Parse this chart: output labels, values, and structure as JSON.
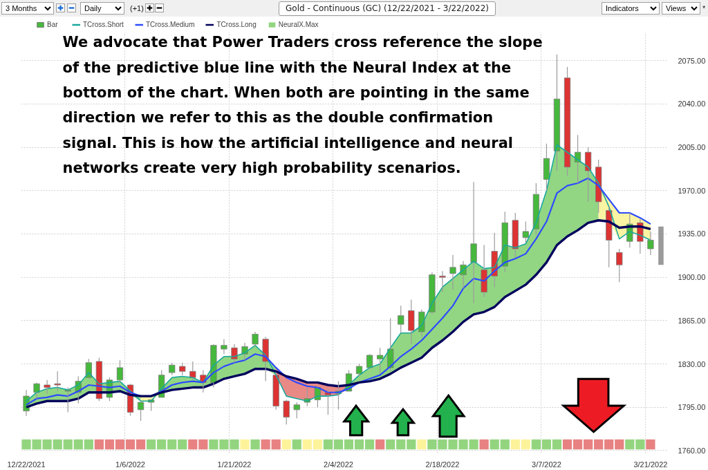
{
  "chart_data": {
    "type": "candlestick",
    "title": "Gold - Continuous (GC) (12/22/2021 - 3/22/2022)",
    "annotations": [
      "3 Months",
      "Daily",
      "(+1)",
      "Indicators",
      "Views",
      "*",
      "We advocate that Power Traders cross reference the slope of the predictive blue line with the Neural Index at the bottom of the chart.  When both are pointing in the same direction we refer to this as the double confirmation signal.  This is how the artificial intelligence and neural networks create very high probability scenarios."
    ],
    "categories": [
      "12/22/2021",
      null,
      null,
      null,
      null,
      null,
      null,
      null,
      null,
      null,
      "1/6/2022",
      null,
      null,
      null,
      null,
      null,
      null,
      null,
      null,
      null,
      "1/21/2022",
      null,
      null,
      null,
      null,
      null,
      null,
      null,
      null,
      null,
      "2/4/2022",
      null,
      null,
      null,
      null,
      null,
      null,
      null,
      null,
      null,
      "2/18/2022",
      null,
      null,
      null,
      null,
      null,
      null,
      null,
      null,
      null,
      "3/7/2022",
      null,
      null,
      null,
      null,
      null,
      null,
      null,
      null,
      null,
      "3/21/2022",
      null
    ],
    "ylim": [
      1758,
      2098
    ],
    "yticks": [
      {
        "value": 1760,
        "label": "1760.00"
      },
      {
        "value": 1795,
        "label": "1795.00"
      },
      {
        "value": 1830,
        "label": "1830.00"
      },
      {
        "value": 1865,
        "label": "1865.00"
      },
      {
        "value": 1900,
        "label": "1900.00"
      },
      {
        "value": 1935,
        "label": "1935.00"
      },
      {
        "value": 1970,
        "label": "1970.00"
      },
      {
        "value": 2005,
        "label": "2005.00"
      },
      {
        "value": 2040,
        "label": "2040.00"
      },
      {
        "value": 2075,
        "label": "2075.00"
      }
    ],
    "grid": true,
    "legend": "top left",
    "series": [
      {
        "name": "Bar",
        "ohlc": [
          [
            1792,
            1809,
            1788,
            1804
          ],
          [
            1807,
            1815,
            1802,
            1814
          ],
          [
            1813,
            1817,
            1806,
            1811
          ],
          [
            1814,
            1824,
            1808,
            1813
          ],
          [
            1808,
            1811,
            1791,
            1809
          ],
          [
            1807,
            1820,
            1798,
            1816
          ],
          [
            1819,
            1834,
            1818,
            1831
          ],
          [
            1832,
            1835,
            1800,
            1802
          ],
          [
            1803,
            1819,
            1800,
            1817
          ],
          [
            1817,
            1833,
            1815,
            1827
          ],
          [
            1813,
            1814,
            1788,
            1791
          ],
          [
            1793,
            1800,
            1784,
            1799
          ],
          [
            1799,
            1801,
            1792,
            1801
          ],
          [
            1803,
            1825,
            1803,
            1821
          ],
          [
            1823,
            1831,
            1821,
            1829
          ],
          [
            1828,
            1831,
            1821,
            1824
          ],
          [
            1824,
            1832,
            1817,
            1819
          ],
          [
            1821,
            1825,
            1807,
            1815
          ],
          [
            1815,
            1846,
            1811,
            1845
          ],
          [
            1842,
            1850,
            1838,
            1845
          ],
          [
            1843,
            1846,
            1831,
            1834
          ],
          [
            1838,
            1847,
            1833,
            1844
          ],
          [
            1846,
            1856,
            1844,
            1854
          ],
          [
            1850,
            1852,
            1816,
            1832
          ],
          [
            1821,
            1823,
            1793,
            1796
          ],
          [
            1800,
            1801,
            1781,
            1787
          ],
          [
            1793,
            1799,
            1786,
            1797
          ],
          [
            1799,
            1811,
            1796,
            1802
          ],
          [
            1801,
            1812,
            1795,
            1811
          ],
          [
            1807,
            1810,
            1789,
            1805
          ],
          [
            1806,
            1816,
            1793,
            1808
          ],
          [
            1808,
            1825,
            1808,
            1822
          ],
          [
            1822,
            1830,
            1820,
            1828
          ],
          [
            1827,
            1838,
            1826,
            1837
          ],
          [
            1834,
            1843,
            1822,
            1837
          ],
          [
            1827,
            1867,
            1824,
            1842
          ],
          [
            1862,
            1877,
            1855,
            1869
          ],
          [
            1873,
            1882,
            1846,
            1857
          ],
          [
            1856,
            1874,
            1852,
            1872
          ],
          [
            1872,
            1904,
            1870,
            1902
          ],
          [
            1901,
            1905,
            1888,
            1900
          ],
          [
            1903,
            1918,
            1890,
            1908
          ],
          [
            1902,
            1913,
            1891,
            1910
          ],
          [
            1912,
            1977,
            1879,
            1927
          ],
          [
            1906,
            1926,
            1884,
            1888
          ],
          [
            1921,
            1936,
            1892,
            1901
          ],
          [
            1909,
            1953,
            1904,
            1944
          ],
          [
            1946,
            1952,
            1916,
            1923
          ],
          [
            1932,
            1945,
            1928,
            1937
          ],
          [
            1939,
            1976,
            1934,
            1967
          ],
          [
            1979,
            2008,
            1970,
            1996
          ],
          [
            2002,
            2080,
            1986,
            2044
          ],
          [
            2061,
            2070,
            1982,
            1989
          ],
          [
            1993,
            2015,
            1976,
            2001
          ],
          [
            2001,
            2005,
            1961,
            1986
          ],
          [
            1989,
            1995,
            1952,
            1961
          ],
          [
            1954,
            1957,
            1908,
            1930
          ],
          [
            1920,
            1923,
            1896,
            1910
          ],
          [
            1929,
            1952,
            1924,
            1943
          ],
          [
            1944,
            1947,
            1919,
            1929
          ],
          [
            1923,
            1937,
            1918,
            1930
          ],
          null
        ],
        "colors": [
          "#46b83c",
          "#46b83c",
          "#dd3333",
          "#dd3333",
          "#46b83c",
          "#46b83c",
          "#46b83c",
          "#dd3333",
          "#46b83c",
          "#46b83c",
          "#dd3333",
          "#46b83c",
          "#46b83c",
          "#46b83c",
          "#46b83c",
          "#dd3333",
          "#dd3333",
          "#dd3333",
          "#46b83c",
          "#46b83c",
          "#dd3333",
          "#46b83c",
          "#46b83c",
          "#dd3333",
          "#dd3333",
          "#dd3333",
          "#46b83c",
          "#46b83c",
          "#46b83c",
          "#dd3333",
          "#46b83c",
          "#46b83c",
          "#46b83c",
          "#46b83c",
          "#46b83c",
          "#46b83c",
          "#46b83c",
          "#dd3333",
          "#46b83c",
          "#46b83c",
          "#dd3333",
          "#46b83c",
          "#46b83c",
          "#46b83c",
          "#dd3333",
          "#dd3333",
          "#46b83c",
          "#dd3333",
          "#46b83c",
          "#46b83c",
          "#46b83c",
          "#46b83c",
          "#dd3333",
          "#46b83c",
          "#dd3333",
          "#dd3333",
          "#dd3333",
          "#dd3333",
          "#46b83c",
          "#dd3333",
          "#46b83c",
          null
        ]
      },
      {
        "type": "line",
        "name": "TCross.Short",
        "color": "#1aa89e",
        "values": [
          1800,
          1807,
          1810,
          1811,
          1809,
          1813,
          1823,
          1814,
          1815,
          1816,
          1808,
          1800,
          1800,
          1810,
          1819,
          1820,
          1819,
          1815,
          1829,
          1836,
          1836,
          1839,
          1845,
          1837,
          1821,
          1804,
          1802,
          1800,
          1804,
          1804,
          1805,
          1813,
          1821,
          1827,
          1830,
          1843,
          1855,
          1855,
          1861,
          1879,
          1892,
          1899,
          1906,
          1913,
          1907,
          1908,
          1926,
          1924,
          1927,
          1944,
          1970,
          2007,
          2001,
          1995,
          1989,
          1976,
          1957,
          1931,
          1937,
          1934,
          1930,
          null
        ]
      },
      {
        "type": "line",
        "name": "TCross.Medium",
        "color": "#2d4bff",
        "values": [
          1797,
          1802,
          1803,
          1805,
          1804,
          1808,
          1813,
          1812,
          1811,
          1812,
          1807,
          1804,
          1804,
          1808,
          1813,
          1815,
          1816,
          1815,
          1823,
          1828,
          1831,
          1833,
          1838,
          1836,
          1827,
          1819,
          1815,
          1812,
          1811,
          1807,
          1807,
          1810,
          1815,
          1818,
          1821,
          1828,
          1836,
          1842,
          1849,
          1858,
          1867,
          1877,
          1891,
          1899,
          1897,
          1905,
          1912,
          1915,
          1919,
          1931,
          1945,
          1968,
          1974,
          1976,
          1980,
          1974,
          1963,
          1952,
          1952,
          1948,
          1943,
          null
        ]
      },
      {
        "type": "line",
        "name": "TCross.Long",
        "color": "#00005c",
        "values": [
          1795,
          1798,
          1800,
          1800,
          1800,
          1802,
          1807,
          1807,
          1807,
          1808,
          1805,
          1804,
          1804,
          1807,
          1809,
          1810,
          1811,
          1811,
          1814,
          1818,
          1820,
          1822,
          1826,
          1826,
          1824,
          1820,
          1818,
          1815,
          1815,
          1813,
          1812,
          1813,
          1815,
          1816,
          1818,
          1822,
          1827,
          1831,
          1835,
          1843,
          1849,
          1856,
          1864,
          1870,
          1872,
          1876,
          1884,
          1889,
          1894,
          1902,
          1912,
          1926,
          1933,
          1938,
          1944,
          1946,
          1945,
          1940,
          1941,
          1941,
          1939,
          null
        ]
      },
      {
        "type": "bar",
        "name": "NeuralX.Max",
        "values": [
          8,
          8,
          8,
          8,
          8,
          8,
          8,
          8,
          8,
          8,
          8,
          8,
          8,
          8,
          8,
          8,
          8,
          8,
          8,
          8,
          8,
          8,
          8,
          8,
          8,
          8,
          8,
          8,
          8,
          8,
          8,
          8,
          8,
          8,
          8,
          8,
          8,
          8,
          8,
          8,
          8,
          8,
          8,
          8,
          8,
          8,
          8,
          8,
          8,
          8,
          8,
          8,
          8,
          8,
          8,
          8,
          8,
          8,
          8,
          8,
          8,
          null
        ],
        "base": [
          1761,
          1761,
          1761,
          1761,
          1761,
          1761,
          1761,
          1761,
          1761,
          1761,
          1761,
          1761,
          1761,
          1761,
          1761,
          1761,
          1761,
          1761,
          1761,
          1761,
          1761,
          1761,
          1761,
          1761,
          1761,
          1761,
          1761,
          1761,
          1761,
          1761,
          1761,
          1761,
          1761,
          1761,
          1761,
          1761,
          1761,
          1761,
          1761,
          1761,
          1761,
          1761,
          1761,
          1761,
          1761,
          1761,
          1761,
          1761,
          1761,
          1761,
          1761,
          1761,
          1761,
          1761,
          1761,
          1761,
          1761,
          1761,
          1761,
          1761,
          1761,
          null
        ],
        "colors": [
          "#93d57f",
          "#93d57f",
          "#93d57f",
          "#93d57f",
          "#93d57f",
          "#93d57f",
          "#93d57f",
          "#e88282",
          "#e88282",
          "#e88282",
          "#e88282",
          "#e88282",
          "#93d57f",
          "#93d57f",
          "#93d57f",
          "#93d57f",
          "#e88282",
          "#e88282",
          "#93d57f",
          "#93d57f",
          "#93d57f",
          "#fdf39b",
          "#93d57f",
          "#e88282",
          "#e88282",
          "#fdf39b",
          "#93d57f",
          "#fdf39b",
          "#fdf39b",
          "#93d57f",
          "#93d57f",
          "#93d57f",
          "#93d57f",
          "#93d57f",
          "#e88282",
          "#93d57f",
          "#93d57f",
          "#93d57f",
          "#fdf39b",
          "#93d57f",
          "#93d57f",
          "#93d57f",
          "#93d57f",
          "#93d57f",
          "#e88282",
          "#93d57f",
          "#93d57f",
          "#fdf39b",
          "#fdf39b",
          "#93d57f",
          "#93d57f",
          "#93d57f",
          "#e88282",
          "#e88282",
          "#e88282",
          "#e88282",
          "#e88282",
          "#e88282",
          "#93d57f",
          "#93d57f",
          "#e88282",
          null
        ]
      },
      {
        "type": "line",
        "color": "#92d683",
        "values": [
          null,
          null,
          null,
          null,
          null,
          null,
          null,
          null,
          null,
          null,
          null,
          null,
          null,
          null,
          null,
          null,
          null,
          null,
          null,
          null,
          null,
          null,
          null,
          null,
          null,
          null,
          null,
          null,
          null,
          null,
          null,
          null,
          null,
          null,
          null,
          null,
          null,
          null,
          null,
          null,
          null,
          null,
          null,
          null,
          null,
          null,
          null,
          null,
          null,
          null,
          null,
          null,
          null,
          null,
          null,
          null,
          null,
          null,
          null,
          null,
          null,
          null
        ],
        "upper": [
          1800,
          1807,
          1810,
          1811,
          1809,
          1813,
          1823,
          1814,
          1815,
          1816,
          1808,
          1804,
          null,
          null,
          null,
          null,
          null,
          null,
          null,
          null,
          null,
          null,
          null,
          null,
          null,
          null,
          null,
          null,
          null,
          null,
          null,
          null,
          null,
          null,
          null,
          null,
          null,
          null,
          null,
          null,
          null,
          null,
          null,
          null,
          null,
          null,
          null,
          null,
          null,
          null,
          null,
          null,
          null,
          null,
          null,
          null,
          null,
          null,
          null,
          null,
          null,
          null
        ],
        "lower": [
          1795,
          1798,
          1800,
          1800,
          1800,
          1802,
          1807,
          1807,
          1807,
          1808,
          1805,
          1800,
          null,
          null,
          null,
          null,
          null,
          null,
          null,
          null,
          null,
          null,
          null,
          null,
          null,
          null,
          null,
          null,
          null,
          null,
          null,
          null,
          null,
          null,
          null,
          null,
          null,
          null,
          null,
          null,
          null,
          null,
          null,
          null,
          null,
          null,
          null,
          null,
          null,
          null,
          null,
          null,
          null,
          null,
          null,
          null,
          null,
          null,
          null,
          null,
          null,
          null
        ]
      },
      {
        "type": "line",
        "color": "#fbf5a3",
        "values": [
          null,
          null,
          null,
          null,
          null,
          null,
          null,
          null,
          null,
          null,
          null,
          null,
          null,
          null,
          null,
          null,
          null,
          null,
          null,
          null,
          null,
          null,
          null,
          null,
          null,
          null,
          null,
          null,
          null,
          null,
          null,
          null,
          null,
          null,
          null,
          null,
          null,
          null,
          null,
          null,
          null,
          null,
          null,
          null,
          null,
          null,
          null,
          null,
          null,
          null,
          null,
          null,
          null,
          null,
          null,
          null,
          null,
          null,
          null,
          null,
          null,
          null
        ],
        "upper": [
          null,
          null,
          null,
          null,
          null,
          null,
          null,
          null,
          null,
          null,
          null,
          1804,
          1804,
          1810,
          null,
          null,
          null,
          null,
          null,
          null,
          null,
          null,
          null,
          null,
          null,
          null,
          null,
          null,
          null,
          null,
          null,
          null,
          null,
          null,
          null,
          null,
          null,
          null,
          null,
          null,
          null,
          null,
          null,
          null,
          null,
          null,
          null,
          null,
          null,
          null,
          null,
          null,
          null,
          null,
          null,
          null,
          null,
          null,
          null,
          null,
          null,
          null
        ],
        "lower": [
          null,
          null,
          null,
          null,
          null,
          null,
          null,
          null,
          null,
          null,
          null,
          1800,
          1800,
          1807,
          null,
          null,
          null,
          null,
          null,
          null,
          null,
          null,
          null,
          null,
          null,
          null,
          null,
          null,
          null,
          null,
          null,
          null,
          null,
          null,
          null,
          null,
          null,
          null,
          null,
          null,
          null,
          null,
          null,
          null,
          null,
          null,
          null,
          null,
          null,
          null,
          null,
          null,
          null,
          null,
          null,
          null,
          null,
          null,
          null,
          null,
          null,
          null
        ]
      },
      {
        "type": "line",
        "color": "#92d683",
        "values": [
          null,
          null,
          null,
          null,
          null,
          null,
          null,
          null,
          null,
          null,
          null,
          null,
          null,
          null,
          null,
          null,
          null,
          null,
          null,
          null,
          null,
          null,
          null,
          null,
          null,
          null,
          null,
          null,
          null,
          null,
          null,
          null,
          null,
          null,
          null,
          null,
          null,
          null,
          null,
          null,
          null,
          null,
          null,
          null,
          null,
          null,
          null,
          null,
          null,
          null,
          null,
          null,
          null,
          null,
          null,
          null,
          null,
          null,
          null,
          null,
          null,
          null
        ],
        "upper": [
          null,
          null,
          null,
          null,
          null,
          null,
          null,
          null,
          null,
          null,
          null,
          null,
          null,
          1810,
          1819,
          1820,
          1819,
          1815,
          1829,
          1836,
          1836,
          1839,
          1845,
          1837,
          1827,
          null,
          null,
          null,
          null,
          null,
          null,
          null,
          null,
          null,
          null,
          null,
          null,
          null,
          null,
          null,
          null,
          null,
          null,
          null,
          null,
          null,
          null,
          null,
          null,
          null,
          null,
          null,
          null,
          null,
          null,
          null,
          null,
          null,
          null,
          null,
          null,
          null
        ],
        "lower": [
          null,
          null,
          null,
          null,
          null,
          null,
          null,
          null,
          null,
          null,
          null,
          null,
          null,
          1807,
          1809,
          1810,
          1811,
          1811,
          1814,
          1818,
          1820,
          1822,
          1826,
          1826,
          1821,
          null,
          null,
          null,
          null,
          null,
          null,
          null,
          null,
          null,
          null,
          null,
          null,
          null,
          null,
          null,
          null,
          null,
          null,
          null,
          null,
          null,
          null,
          null,
          null,
          null,
          null,
          null,
          null,
          null,
          null,
          null,
          null,
          null,
          null,
          null,
          null,
          null
        ]
      },
      {
        "type": "line",
        "color": "#e98986",
        "values": [
          null,
          null,
          null,
          null,
          null,
          null,
          null,
          null,
          null,
          null,
          null,
          null,
          null,
          null,
          null,
          null,
          null,
          null,
          null,
          null,
          null,
          null,
          null,
          null,
          null,
          null,
          null,
          null,
          null,
          null,
          null,
          null,
          null,
          null,
          null,
          null,
          null,
          null,
          null,
          null,
          null,
          null,
          null,
          null,
          null,
          null,
          null,
          null,
          null,
          null,
          null,
          null,
          null,
          null,
          null,
          null,
          null,
          null,
          null,
          null,
          null,
          null
        ],
        "upper": [
          null,
          null,
          null,
          null,
          null,
          null,
          null,
          null,
          null,
          null,
          null,
          null,
          null,
          null,
          null,
          null,
          null,
          null,
          null,
          null,
          null,
          null,
          null,
          null,
          1827,
          1820,
          1818,
          1815,
          1815,
          1813,
          1812,
          1813,
          null,
          null,
          null,
          null,
          null,
          null,
          null,
          null,
          null,
          null,
          null,
          null,
          null,
          null,
          null,
          null,
          null,
          null,
          null,
          null,
          null,
          null,
          null,
          null,
          null,
          null,
          null,
          null,
          null,
          null
        ],
        "lower": [
          null,
          null,
          null,
          null,
          null,
          null,
          null,
          null,
          null,
          null,
          null,
          null,
          null,
          null,
          null,
          null,
          null,
          null,
          null,
          null,
          null,
          null,
          null,
          null,
          1821,
          1804,
          1802,
          1800,
          1804,
          1804,
          1805,
          1810,
          null,
          null,
          null,
          null,
          null,
          null,
          null,
          null,
          null,
          null,
          null,
          null,
          null,
          null,
          null,
          null,
          null,
          null,
          null,
          null,
          null,
          null,
          null,
          null,
          null,
          null,
          null,
          null,
          null,
          null
        ]
      },
      {
        "type": "line",
        "color": "#92d683",
        "values": [
          null,
          null,
          null,
          null,
          null,
          null,
          null,
          null,
          null,
          null,
          null,
          null,
          null,
          null,
          null,
          null,
          null,
          null,
          null,
          null,
          null,
          null,
          null,
          null,
          null,
          null,
          null,
          null,
          null,
          null,
          null,
          null,
          null,
          null,
          null,
          null,
          null,
          null,
          null,
          null,
          null,
          null,
          null,
          null,
          null,
          null,
          null,
          null,
          null,
          null,
          null,
          null,
          null,
          null,
          null,
          null,
          null,
          null,
          null,
          null,
          null,
          null
        ],
        "upper": [
          null,
          null,
          null,
          null,
          null,
          null,
          null,
          null,
          null,
          null,
          null,
          null,
          null,
          null,
          null,
          null,
          null,
          null,
          null,
          null,
          null,
          null,
          null,
          null,
          null,
          null,
          null,
          null,
          null,
          null,
          null,
          1813,
          1821,
          1827,
          1830,
          1843,
          1855,
          1855,
          1861,
          1879,
          1892,
          1899,
          1906,
          1913,
          1907,
          1908,
          1926,
          1924,
          1927,
          1944,
          1970,
          2007,
          2001,
          1995,
          1989,
          1976,
          null,
          null,
          null,
          null,
          null,
          null
        ],
        "lower": [
          null,
          null,
          null,
          null,
          null,
          null,
          null,
          null,
          null,
          null,
          null,
          null,
          null,
          null,
          null,
          null,
          null,
          null,
          null,
          null,
          null,
          null,
          null,
          null,
          null,
          null,
          null,
          null,
          null,
          null,
          null,
          1810,
          1815,
          1816,
          1818,
          1822,
          1827,
          1831,
          1835,
          1843,
          1849,
          1856,
          1864,
          1870,
          1872,
          1876,
          1884,
          1889,
          1894,
          1902,
          1912,
          1926,
          1933,
          1938,
          1944,
          1946,
          null,
          null,
          null,
          null,
          null,
          null
        ]
      },
      {
        "type": "line",
        "color": "#fbf5a3",
        "values": [
          null,
          null,
          null,
          null,
          null,
          null,
          null,
          null,
          null,
          null,
          null,
          null,
          null,
          null,
          null,
          null,
          null,
          null,
          null,
          null,
          null,
          null,
          null,
          null,
          null,
          null,
          null,
          null,
          null,
          null,
          null,
          null,
          null,
          null,
          null,
          null,
          null,
          null,
          null,
          null,
          null,
          null,
          null,
          null,
          null,
          null,
          null,
          null,
          null,
          null,
          null,
          null,
          null,
          null,
          null,
          null,
          null,
          null,
          null,
          null,
          null,
          null
        ],
        "upper": [
          null,
          null,
          null,
          null,
          null,
          null,
          null,
          null,
          null,
          null,
          null,
          null,
          null,
          null,
          null,
          null,
          null,
          null,
          null,
          null,
          null,
          null,
          null,
          null,
          null,
          null,
          null,
          null,
          null,
          null,
          null,
          null,
          null,
          null,
          null,
          null,
          null,
          null,
          null,
          null,
          null,
          null,
          null,
          null,
          null,
          null,
          null,
          null,
          null,
          null,
          null,
          null,
          null,
          null,
          null,
          1976,
          1963,
          1952,
          1952,
          1948,
          1943,
          null
        ],
        "lower": [
          null,
          null,
          null,
          null,
          null,
          null,
          null,
          null,
          null,
          null,
          null,
          null,
          null,
          null,
          null,
          null,
          null,
          null,
          null,
          null,
          null,
          null,
          null,
          null,
          null,
          null,
          null,
          null,
          null,
          null,
          null,
          null,
          null,
          null,
          null,
          null,
          null,
          null,
          null,
          null,
          null,
          null,
          null,
          null,
          null,
          null,
          null,
          null,
          null,
          null,
          null,
          null,
          null,
          null,
          null,
          1946,
          1945,
          1931,
          1937,
          1934,
          1930,
          null
        ]
      },
      {
        "type": "bar",
        "color": "#9a9a9a",
        "values": [
          null,
          null,
          null,
          null,
          null,
          null,
          null,
          null,
          null,
          null,
          null,
          null,
          null,
          null,
          null,
          null,
          null,
          null,
          null,
          null,
          null,
          null,
          null,
          null,
          null,
          null,
          null,
          null,
          null,
          null,
          null,
          null,
          null,
          null,
          null,
          null,
          null,
          null,
          null,
          null,
          null,
          null,
          null,
          null,
          null,
          null,
          null,
          null,
          null,
          null,
          null,
          null,
          null,
          null,
          null,
          null,
          null,
          null,
          null,
          null,
          null,
          31
        ],
        "base": [
          null,
          null,
          null,
          null,
          null,
          null,
          null,
          null,
          null,
          null,
          null,
          null,
          null,
          null,
          null,
          null,
          null,
          null,
          null,
          null,
          null,
          null,
          null,
          null,
          null,
          null,
          null,
          null,
          null,
          null,
          null,
          null,
          null,
          null,
          null,
          null,
          null,
          null,
          null,
          null,
          null,
          null,
          null,
          null,
          null,
          null,
          null,
          null,
          null,
          null,
          null,
          null,
          null,
          null,
          null,
          null,
          null,
          null,
          null,
          null,
          null,
          1910
        ]
      }
    ]
  }
}
